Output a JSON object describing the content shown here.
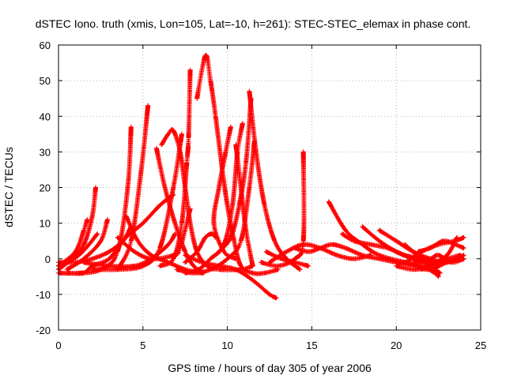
{
  "chart_data": {
    "type": "scatter",
    "title": "dSTEC Iono. truth (xmis, Lon=105, Lat=-10, h=261): STEC-STEC_elemax in phase cont.",
    "xlabel": "GPS time / hours of day 305 of year 2006",
    "ylabel": "dSTEC  / TECUs",
    "xlim": [
      0,
      25
    ],
    "ylim": [
      -20,
      60
    ],
    "xticks": [
      0,
      5,
      10,
      15,
      20,
      25
    ],
    "yticks": [
      -20,
      -10,
      0,
      10,
      20,
      30,
      40,
      50,
      60
    ],
    "xtick_labels": [
      "0",
      "5",
      "10",
      "15",
      "20",
      "25"
    ],
    "ytick_labels": [
      "-20",
      "-10",
      "0",
      "10",
      "20",
      "30",
      "40",
      "50",
      "60"
    ],
    "grid": true,
    "legend": "none",
    "marker": "plus",
    "color": "#ff0000",
    "series": [
      {
        "points": [
          [
            0,
            -3
          ],
          [
            0.8,
            0
          ],
          [
            1.5,
            4
          ],
          [
            2.0,
            12
          ],
          [
            2.2,
            20
          ]
        ]
      },
      {
        "points": [
          [
            0,
            -4
          ],
          [
            1.2,
            -4
          ],
          [
            2.5,
            -3
          ],
          [
            3.5,
            2
          ],
          [
            4.1,
            20
          ],
          [
            4.3,
            37
          ]
        ]
      },
      {
        "points": [
          [
            0,
            -2
          ],
          [
            1,
            2
          ],
          [
            1.5,
            8
          ],
          [
            1.7,
            11
          ]
        ]
      },
      {
        "points": [
          [
            0.5,
            -3
          ],
          [
            1.5,
            0
          ],
          [
            2.5,
            5
          ],
          [
            2.9,
            11
          ]
        ]
      },
      {
        "points": [
          [
            3.5,
            -3
          ],
          [
            4.3,
            5
          ],
          [
            4.9,
            25
          ],
          [
            5.3,
            43
          ]
        ]
      },
      {
        "points": [
          [
            1.5,
            -1
          ],
          [
            3,
            -2
          ],
          [
            4.5,
            -2
          ],
          [
            5.5,
            0
          ],
          [
            6.5,
            4
          ],
          [
            6.9,
            7
          ]
        ]
      },
      {
        "points": [
          [
            0.5,
            -4
          ],
          [
            1.5,
            -4
          ],
          [
            2,
            -2
          ],
          [
            3,
            0
          ],
          [
            4,
            6
          ],
          [
            5,
            10
          ],
          [
            6,
            15
          ],
          [
            6.8,
            18
          ]
        ]
      },
      {
        "points": [
          [
            2,
            -3
          ],
          [
            3.5,
            -3
          ],
          [
            5,
            -2
          ],
          [
            6,
            3
          ],
          [
            6.8,
            20
          ],
          [
            7.3,
            35
          ]
        ]
      },
      {
        "points": [
          [
            5.8,
            31
          ],
          [
            6.3,
            20
          ],
          [
            6.9,
            10
          ],
          [
            7.5,
            2
          ],
          [
            8,
            -2
          ],
          [
            8.6,
            -4
          ]
        ]
      },
      {
        "points": [
          [
            6.1,
            32
          ],
          [
            6.5,
            35
          ],
          [
            6.8,
            36
          ],
          [
            7.2,
            30
          ],
          [
            7.5,
            20
          ],
          [
            7.8,
            10
          ],
          [
            8.2,
            2
          ],
          [
            8.8,
            -2
          ],
          [
            9.5,
            -3
          ],
          [
            10.8,
            -3
          ],
          [
            11.5,
            -2
          ]
        ]
      },
      {
        "points": [
          [
            3.5,
            6
          ],
          [
            4.5,
            2
          ],
          [
            5.5,
            0
          ],
          [
            6.8,
            1
          ],
          [
            7.2,
            3
          ],
          [
            7.8,
            14
          ]
        ]
      },
      {
        "points": [
          [
            6,
            -2
          ],
          [
            6.8,
            0
          ],
          [
            7.3,
            10
          ],
          [
            7.6,
            27
          ],
          [
            7.7,
            34
          ],
          [
            7.8,
            53
          ]
        ]
      },
      {
        "points": [
          [
            4,
            12
          ],
          [
            4.7,
            5
          ],
          [
            5.5,
            1
          ],
          [
            6.5,
            -1
          ],
          [
            7.5,
            -3
          ],
          [
            8.5,
            -4
          ]
        ]
      },
      {
        "points": [
          [
            7.5,
            -1
          ],
          [
            8.2,
            2
          ],
          [
            8.7,
            6
          ],
          [
            9.1,
            7
          ],
          [
            9.3,
            6
          ]
        ]
      },
      {
        "points": [
          [
            8.2,
            45
          ],
          [
            8.7,
            57
          ],
          [
            9.0,
            50
          ],
          [
            9.3,
            40
          ],
          [
            9.7,
            25
          ],
          [
            10.0,
            15
          ],
          [
            10.4,
            5
          ],
          [
            10.8,
            -2
          ],
          [
            11.5,
            -4
          ],
          [
            12.2,
            -4
          ],
          [
            13,
            -3
          ]
        ]
      },
      {
        "points": [
          [
            7.5,
            -4
          ],
          [
            8.3,
            -3
          ],
          [
            9,
            0
          ],
          [
            9.8,
            4
          ],
          [
            10.3,
            15
          ],
          [
            10.6,
            30
          ],
          [
            10.9,
            38
          ]
        ]
      },
      {
        "points": [
          [
            7,
            -3
          ],
          [
            8,
            -4
          ],
          [
            9,
            -3
          ],
          [
            10,
            0
          ],
          [
            10.8,
            5
          ],
          [
            11.3,
            20
          ],
          [
            11.6,
            33
          ]
        ]
      },
      {
        "points": [
          [
            7.5,
            1
          ],
          [
            8.5,
            -1
          ],
          [
            9.5,
            -2
          ],
          [
            10.5,
            -3
          ],
          [
            11.5,
            -6
          ],
          [
            12.5,
            -10
          ],
          [
            12.9,
            -11
          ]
        ]
      },
      {
        "points": [
          [
            9.5,
            2
          ],
          [
            10.2,
            6
          ],
          [
            10.7,
            15
          ],
          [
            11.1,
            27
          ],
          [
            11.4,
            45
          ]
        ]
      },
      {
        "points": [
          [
            10.5,
            32
          ],
          [
            10.8,
            20
          ],
          [
            11.1,
            8
          ],
          [
            11.5,
            -2
          ]
        ]
      },
      {
        "points": [
          [
            11.3,
            47
          ],
          [
            11.7,
            30
          ],
          [
            12.2,
            15
          ],
          [
            12.8,
            5
          ],
          [
            13.5,
            0
          ],
          [
            14.3,
            -3
          ]
        ]
      },
      {
        "points": [
          [
            10.2,
            37
          ],
          [
            9.9,
            30
          ],
          [
            9.5,
            20
          ],
          [
            9.2,
            10
          ],
          [
            9.8,
            2
          ],
          [
            10.5,
            0
          ]
        ]
      },
      {
        "points": [
          [
            12.0,
            -1
          ],
          [
            13.0,
            -2
          ],
          [
            14.0,
            0
          ],
          [
            14.5,
            5
          ],
          [
            14.5,
            30
          ]
        ]
      },
      {
        "points": [
          [
            12.3,
            2
          ],
          [
            13.2,
            0
          ],
          [
            14,
            -1
          ],
          [
            14.8,
            -2
          ]
        ]
      },
      {
        "points": [
          [
            12.5,
            -1
          ],
          [
            13.5,
            2
          ],
          [
            14.5,
            4
          ],
          [
            15.5,
            3
          ],
          [
            16.5,
            1
          ],
          [
            17.5,
            0
          ],
          [
            18.5,
            1
          ]
        ]
      },
      {
        "points": [
          [
            14.0,
            3
          ],
          [
            14.8,
            2
          ],
          [
            15.5,
            3
          ],
          [
            16.2,
            4
          ],
          [
            17.0,
            3
          ],
          [
            18.0,
            1
          ],
          [
            19.0,
            0
          ],
          [
            20.0,
            -1
          ],
          [
            21.0,
            -2
          ],
          [
            22.0,
            -3
          ],
          [
            23.0,
            -1
          ],
          [
            24,
            0
          ]
        ]
      },
      {
        "points": [
          [
            16.0,
            16
          ],
          [
            17.0,
            8
          ],
          [
            18,
            4
          ],
          [
            19.0,
            1
          ],
          [
            20.5,
            -1
          ],
          [
            21.5,
            -2
          ],
          [
            22.3,
            -4
          ]
        ]
      },
      {
        "points": [
          [
            16.8,
            7
          ],
          [
            17.5,
            5
          ],
          [
            18.5,
            4
          ],
          [
            19.5,
            3
          ],
          [
            20.5,
            1
          ],
          [
            21.5,
            0
          ],
          [
            22.5,
            -2
          ]
        ]
      },
      {
        "points": [
          [
            18,
            9
          ],
          [
            19,
            5
          ],
          [
            20,
            2
          ],
          [
            21,
            0
          ],
          [
            22,
            -2
          ],
          [
            22.5,
            -5
          ]
        ]
      },
      {
        "points": [
          [
            19,
            8
          ],
          [
            20,
            5
          ],
          [
            21,
            2
          ],
          [
            22,
            0
          ],
          [
            23,
            -1
          ],
          [
            24,
            1
          ]
        ]
      },
      {
        "points": [
          [
            19.5,
            0
          ],
          [
            20.5,
            -1
          ],
          [
            21.5,
            2
          ],
          [
            22.5,
            4
          ],
          [
            23.5,
            5
          ],
          [
            24,
            6
          ]
        ]
      },
      {
        "points": [
          [
            20,
            -2
          ],
          [
            21,
            -3
          ],
          [
            22,
            -2
          ],
          [
            23,
            1
          ],
          [
            23.6,
            6
          ]
        ]
      },
      {
        "points": [
          [
            21,
            -1
          ],
          [
            22,
            0
          ],
          [
            22.5,
            1
          ],
          [
            23.3,
            -1
          ],
          [
            24,
            0
          ]
        ]
      },
      {
        "points": [
          [
            21.3,
            2
          ],
          [
            22,
            3
          ],
          [
            22.8,
            5
          ],
          [
            23.5,
            4
          ],
          [
            24,
            3
          ]
        ]
      },
      {
        "points": [
          [
            20.5,
            4
          ],
          [
            21,
            2
          ],
          [
            21.5,
            0
          ],
          [
            22,
            -2
          ],
          [
            22.6,
            -4
          ]
        ]
      },
      {
        "points": [
          [
            21.5,
            -3
          ],
          [
            22.3,
            -1
          ],
          [
            23,
            0
          ],
          [
            23.8,
            1
          ]
        ]
      },
      {
        "points": [
          [
            0,
            -1
          ],
          [
            1,
            -1
          ],
          [
            2,
            0
          ],
          [
            3,
            2
          ],
          [
            3.8,
            5
          ],
          [
            4.3,
            9
          ]
        ]
      },
      {
        "points": [
          [
            0,
            -2
          ],
          [
            0.5,
            -1
          ],
          [
            1.2,
            1
          ],
          [
            1.8,
            4
          ],
          [
            2.3,
            7
          ]
        ]
      }
    ]
  }
}
